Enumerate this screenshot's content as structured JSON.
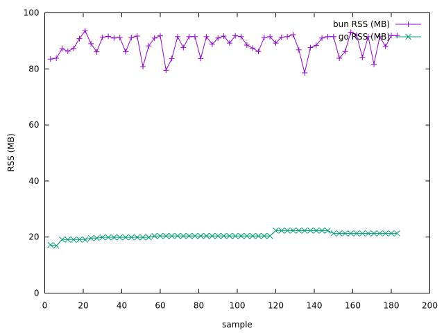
{
  "chart_data": {
    "type": "line",
    "title": "",
    "xlabel": "sample",
    "ylabel": "RSS (MB)",
    "xlim": [
      0,
      200
    ],
    "ylim": [
      0,
      100
    ],
    "xticks": [
      0,
      20,
      40,
      60,
      80,
      100,
      120,
      140,
      160,
      180,
      200
    ],
    "yticks": [
      0,
      20,
      40,
      60,
      80,
      100
    ],
    "grid": false,
    "legend_position": "top-right",
    "series": [
      {
        "name": "bun RSS (MB)",
        "color": "#9400d3",
        "marker": "plus",
        "x": [
          3,
          6,
          9,
          12,
          15,
          18,
          21,
          24,
          27,
          30,
          33,
          36,
          39,
          42,
          45,
          48,
          51,
          54,
          57,
          60,
          63,
          66,
          69,
          72,
          75,
          78,
          81,
          84,
          87,
          90,
          93,
          96,
          99,
          102,
          105,
          108,
          111,
          114,
          117,
          120,
          123,
          126,
          129,
          132,
          135,
          138,
          141,
          144,
          147,
          150,
          153,
          156,
          159,
          162,
          165,
          168,
          171,
          174,
          177,
          180,
          183
        ],
        "y": [
          83.5,
          83.8,
          87.2,
          86.3,
          87.3,
          90.8,
          93.6,
          89.0,
          86.1,
          91.3,
          91.6,
          91.0,
          91.2,
          86.1,
          91.2,
          91.7,
          80.8,
          88.2,
          91.0,
          91.8,
          79.5,
          83.7,
          91.5,
          87.6,
          91.5,
          91.5,
          83.7,
          91.5,
          88.8,
          91.0,
          91.7,
          89.2,
          91.8,
          91.5,
          88.5,
          87.4,
          86.2,
          91.2,
          91.5,
          89.2,
          91.3,
          91.5,
          92.2,
          86.8,
          78.6,
          87.6,
          88.4,
          91.0,
          91.5,
          91.5,
          83.8,
          86.2,
          93.1,
          92.1,
          84.1,
          91.5,
          81.7,
          91.5,
          88.0,
          91.9,
          91.9
        ]
      },
      {
        "name": "go RSS (MB)",
        "color": "#009e73",
        "marker": "cross",
        "x": [
          3,
          6,
          9,
          12,
          15,
          18,
          21,
          24,
          27,
          30,
          33,
          36,
          39,
          42,
          45,
          48,
          51,
          54,
          57,
          60,
          63,
          66,
          69,
          72,
          75,
          78,
          81,
          84,
          87,
          90,
          93,
          96,
          99,
          102,
          105,
          108,
          111,
          114,
          117,
          120,
          123,
          126,
          129,
          132,
          135,
          138,
          141,
          144,
          147,
          150,
          153,
          156,
          159,
          162,
          165,
          168,
          171,
          174,
          177,
          180,
          183
        ],
        "y": [
          17.2,
          16.9,
          19.1,
          19.1,
          19.1,
          19.1,
          19.1,
          19.6,
          19.6,
          19.9,
          19.9,
          19.9,
          19.9,
          19.9,
          19.9,
          19.9,
          19.9,
          19.9,
          20.4,
          20.4,
          20.4,
          20.4,
          20.4,
          20.4,
          20.4,
          20.4,
          20.4,
          20.4,
          20.4,
          20.4,
          20.4,
          20.4,
          20.4,
          20.4,
          20.4,
          20.4,
          20.4,
          20.4,
          20.4,
          22.3,
          22.3,
          22.3,
          22.3,
          22.3,
          22.3,
          22.3,
          22.3,
          22.3,
          22.3,
          21.3,
          21.3,
          21.3,
          21.3,
          21.3,
          21.3,
          21.3,
          21.3,
          21.3,
          21.3,
          21.3,
          21.3
        ]
      }
    ]
  }
}
